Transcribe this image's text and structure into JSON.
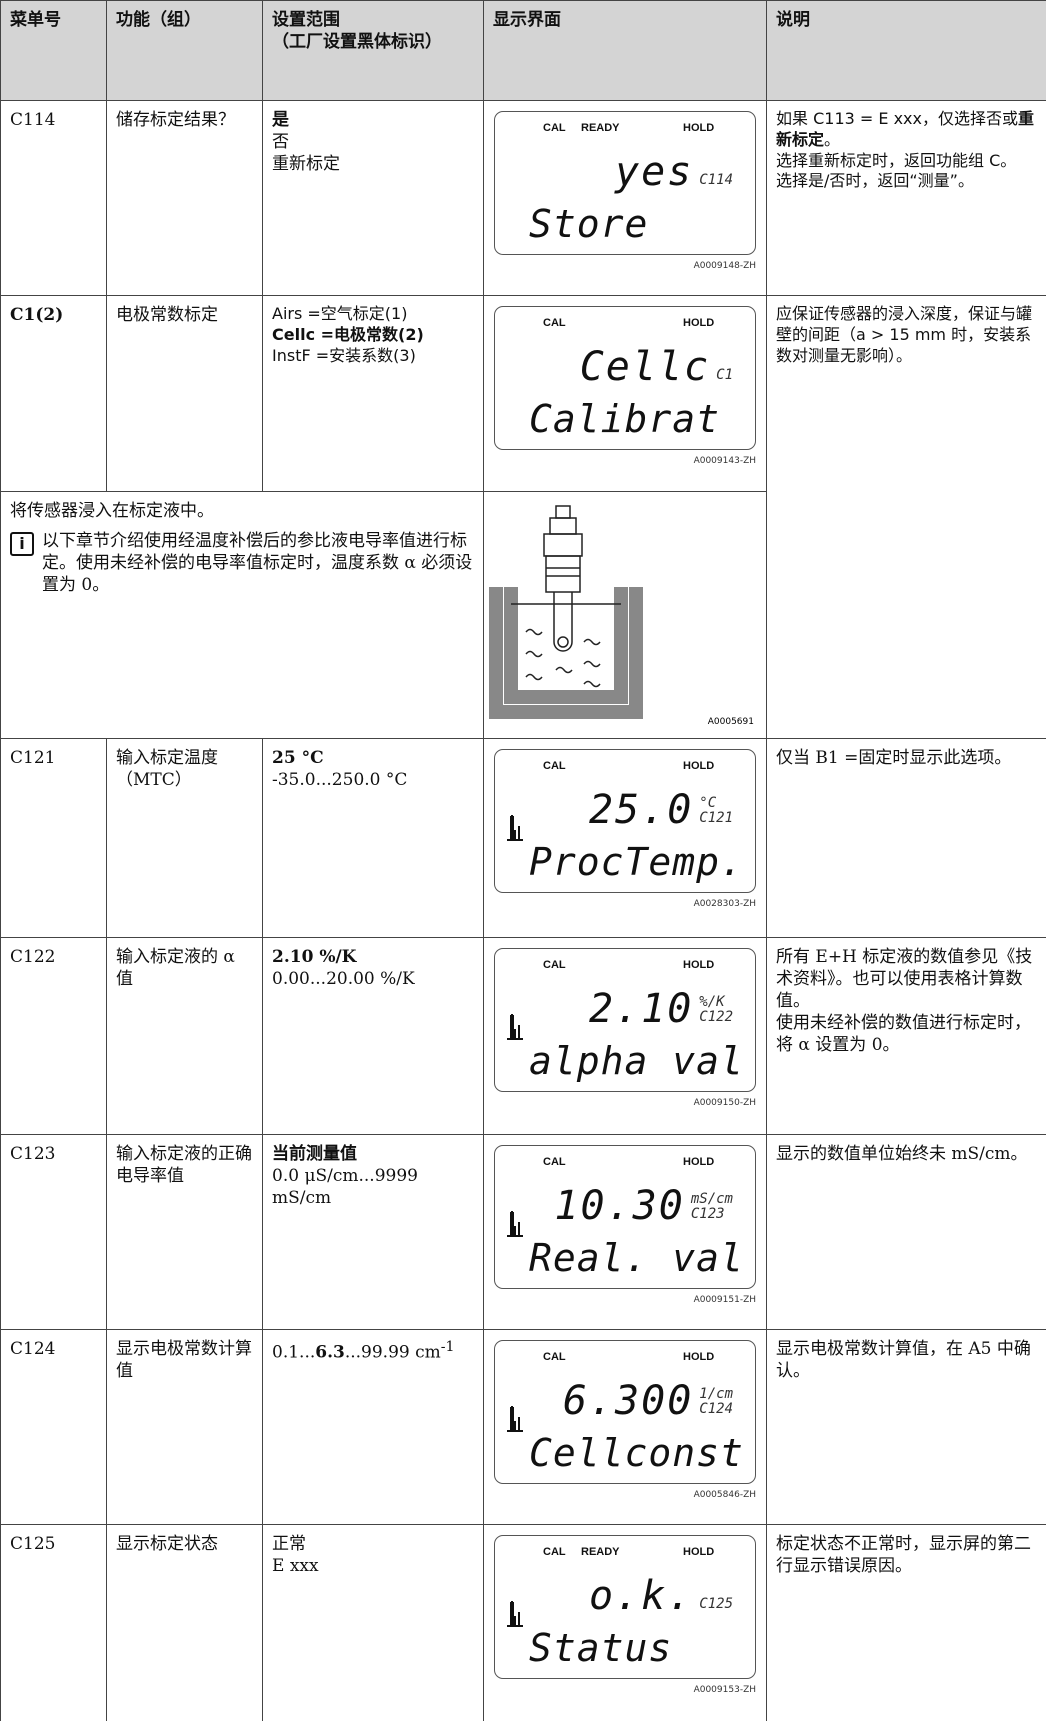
{
  "header": {
    "menu": "菜单号",
    "function": "功能（组）",
    "range": [
      "设置范围",
      "（工厂设置黑体标识）"
    ],
    "display": "显示界面",
    "note": "说明"
  },
  "rows": [
    {
      "code": "C114",
      "function": "储存标定结果？",
      "range": [
        "是",
        "否",
        "重新标定"
      ],
      "display": {
        "tags": [
          "CAL",
          "READY",
          "HOLD"
        ],
        "value": "yes",
        "code": "C114",
        "text": "Store",
        "figure": "A0009148-ZH"
      },
      "note": [
        [
          "如果 C113 = E xxx，仅选择否或",
          "重新标定",
          "。"
        ],
        [
          "选择重新标定时，返回功能组 C。"
        ],
        [
          "选择是/否时，返回“测量”。"
        ]
      ]
    },
    {
      "code": "C1(2)",
      "function": "电极常数标定",
      "range": [
        "Airs =空气标定(1)",
        "Cellc =电极常数(2)",
        "InstF =安装系数(3)"
      ],
      "display": {
        "tags": [
          "CAL",
          "HOLD"
        ],
        "value": "Cellc",
        "code": "C1",
        "text": "Calibrat",
        "figure": "A0009143-ZH"
      },
      "note": [
        [
          "应保证传感器的浸入深度，保证与罐壁的间距（a > 15 mm 时，安装系数对测量无影响）。"
        ]
      ]
    },
    {
      "text": "将传感器浸入在标定液中。",
      "info": "以下章节介绍使用经温度补偿后的参比液电导率值进行标定。使用未经补偿的电导率值标定时，温度系数 α 必须设置为 0。",
      "figure": "A0005691"
    },
    {
      "code": "C121",
      "function": "输入标定温度（MTC）",
      "range": [
        "25 °C",
        "-35.0...250.0 °C"
      ],
      "display": {
        "tags": [
          "CAL",
          "HOLD"
        ],
        "value": "25.0",
        "unit": "°C",
        "code": "C121",
        "text": "ProcTemp.",
        "figure": "A0028303-ZH"
      },
      "note": [
        [
          "仅当 B1 =固定时显示此选项。"
        ]
      ]
    },
    {
      "code": "C122",
      "function": "输入标定液的 α 值",
      "range": [
        "2.10 %/K",
        "0.00...20.00 %/K"
      ],
      "display": {
        "tags": [
          "CAL",
          "HOLD"
        ],
        "value": "2.10",
        "unit": "%/K",
        "code": "C122",
        "text": "alpha val",
        "figure": "A0009150-ZH"
      },
      "note": [
        [
          "所有 E+H 标定液的数值参见《技术资料》。也可以使用表格计算数值。"
        ],
        [
          "使用未经补偿的数值进行标定时，将 α 设置为 0。"
        ]
      ]
    },
    {
      "code": "C123",
      "function": "输入标定液的正确电导率值",
      "range": [
        "当前测量值",
        "0.0 μS/cm...9999 mS/cm"
      ],
      "display": {
        "tags": [
          "CAL",
          "HOLD"
        ],
        "value": "10.30",
        "unit": "mS/cm",
        "code": "C123",
        "text": "Real. val",
        "figure": "A0009151-ZH"
      },
      "note": [
        [
          "显示的数值单位始终未 mS/cm。"
        ]
      ]
    },
    {
      "code": "C124",
      "function": "显示电极常数计算值",
      "range": [
        "0.1...",
        "6.3",
        "...99.99 cm",
        "-1"
      ],
      "display": {
        "tags": [
          "CAL",
          "HOLD"
        ],
        "value": "6.300",
        "unit": "1/cm",
        "code": "C124",
        "text": "Cellconst",
        "figure": "A0005846-ZH"
      },
      "note": [
        [
          "显示电极常数计算值，在 A5 中确认。"
        ]
      ]
    },
    {
      "code": "C125",
      "function": "显示标定状态",
      "range": [
        "正常",
        "E xxx"
      ],
      "display": {
        "tags": [
          "CAL",
          "READY",
          "HOLD"
        ],
        "value": "o.k.",
        "code": "C125",
        "text": "Status",
        "figure": "A0009153-ZH"
      },
      "note": [
        [
          "标定状态不正常时，显示屏的第二行显示错误原因。"
        ]
      ]
    }
  ]
}
